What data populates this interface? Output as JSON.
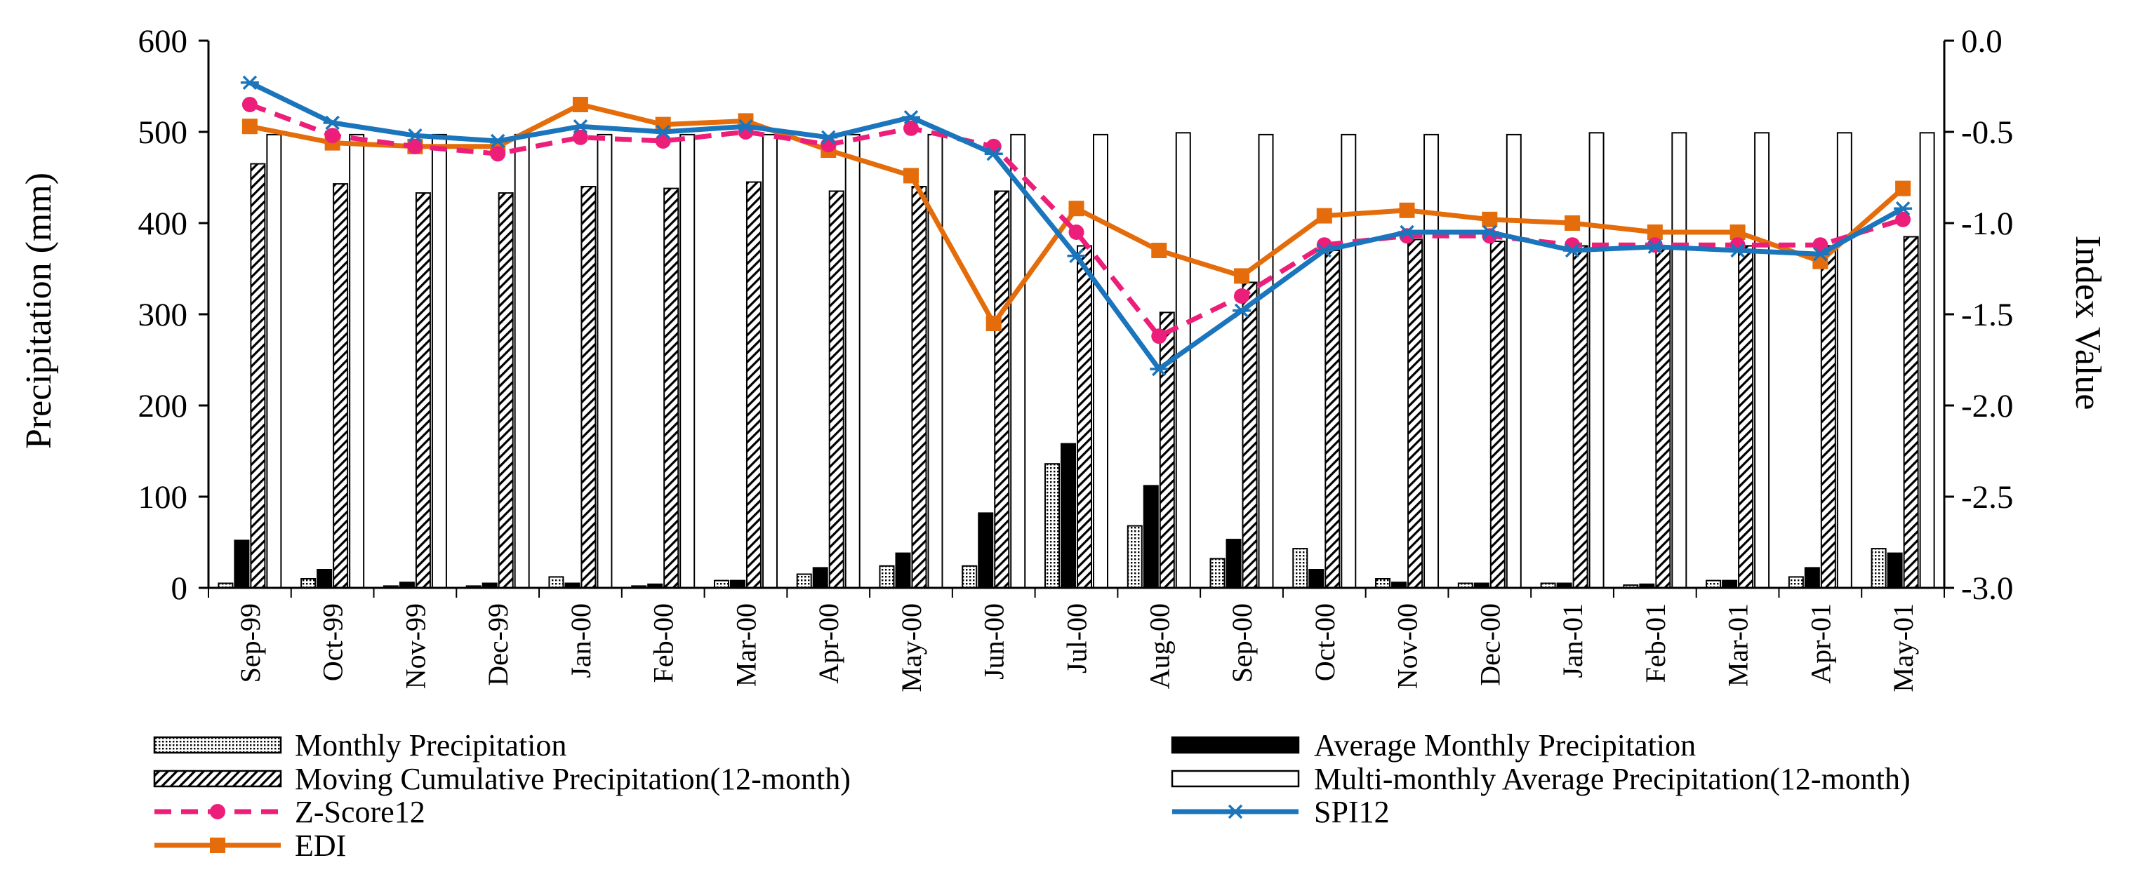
{
  "chart_data": {
    "type": "bar+line",
    "title": "",
    "categories": [
      "Sep-99",
      "Oct-99",
      "Nov-99",
      "Dec-99",
      "Jan-00",
      "Feb-00",
      "Mar-00",
      "Apr-00",
      "May-00",
      "Jun-00",
      "Jul-00",
      "Aug-00",
      "Sep-00",
      "Oct-00",
      "Nov-00",
      "Dec-00",
      "Jan-01",
      "Feb-01",
      "Mar-01",
      "Apr-01",
      "May-01"
    ],
    "ylabel": "Precipitation (mm)",
    "y2label": "Index Value",
    "ylim": [
      0,
      600
    ],
    "y2lim": [
      -3.0,
      0.0
    ],
    "yticks": [
      "0",
      "100",
      "200",
      "300",
      "400",
      "500",
      "600"
    ],
    "y2ticks": [
      "-3.0",
      "-2.5",
      "-2.0",
      "-1.5",
      "-1.0",
      "-0.5",
      "0.0"
    ],
    "legend_position": "bottom",
    "bar_series": [
      {
        "name": "Monthly Precipitation",
        "style": "dotted",
        "values": [
          5,
          10,
          2,
          2,
          12,
          2,
          8,
          15,
          24,
          24,
          136,
          68,
          32,
          43,
          10,
          5,
          5,
          3,
          8,
          12,
          43
        ]
      },
      {
        "name": "Average Monthly Precipitation",
        "style": "solid",
        "values": [
          52,
          20,
          6,
          5,
          5,
          4,
          8,
          22,
          38,
          82,
          158,
          112,
          53,
          20,
          6,
          5,
          5,
          4,
          8,
          22,
          38
        ]
      },
      {
        "name": "Moving Cumulative Precipitation(12-month)",
        "style": "hatched",
        "values": [
          465,
          443,
          433,
          433,
          440,
          438,
          445,
          435,
          440,
          435,
          375,
          302,
          335,
          370,
          382,
          380,
          375,
          375,
          375,
          375,
          385
        ]
      },
      {
        "name": "Multi-monthly Average Precipitation(12-month)",
        "style": "hollow",
        "values": [
          497,
          497,
          497,
          497,
          497,
          497,
          497,
          497,
          497,
          497,
          497,
          499,
          497,
          497,
          497,
          497,
          499,
          499,
          499,
          499,
          499
        ]
      }
    ],
    "line_series": [
      {
        "name": "Z-Score12",
        "color": "#EC1E79",
        "dashed": true,
        "marker": "circle",
        "values": [
          -0.35,
          -0.52,
          -0.58,
          -0.62,
          -0.53,
          -0.55,
          -0.5,
          -0.57,
          -0.48,
          -0.58,
          -1.05,
          -1.62,
          -1.4,
          -1.12,
          -1.07,
          -1.07,
          -1.12,
          -1.12,
          -1.12,
          -1.12,
          -0.98
        ]
      },
      {
        "name": "SPI12",
        "color": "#1B75BC",
        "dashed": false,
        "marker": "star",
        "values": [
          -0.23,
          -0.45,
          -0.52,
          -0.55,
          -0.47,
          -0.5,
          -0.47,
          -0.53,
          -0.42,
          -0.62,
          -1.18,
          -1.8,
          -1.48,
          -1.15,
          -1.05,
          -1.05,
          -1.15,
          -1.13,
          -1.15,
          -1.17,
          -0.92
        ]
      },
      {
        "name": "EDI",
        "color": "#E46C0A",
        "dashed": false,
        "marker": "square",
        "values": [
          -0.47,
          -0.56,
          -0.58,
          -0.58,
          -0.35,
          -0.46,
          -0.44,
          -0.6,
          -0.74,
          -1.55,
          -0.92,
          -1.15,
          -1.29,
          -0.96,
          -0.93,
          -0.98,
          -1.0,
          -1.05,
          -1.05,
          -1.21,
          -0.81
        ]
      }
    ]
  }
}
